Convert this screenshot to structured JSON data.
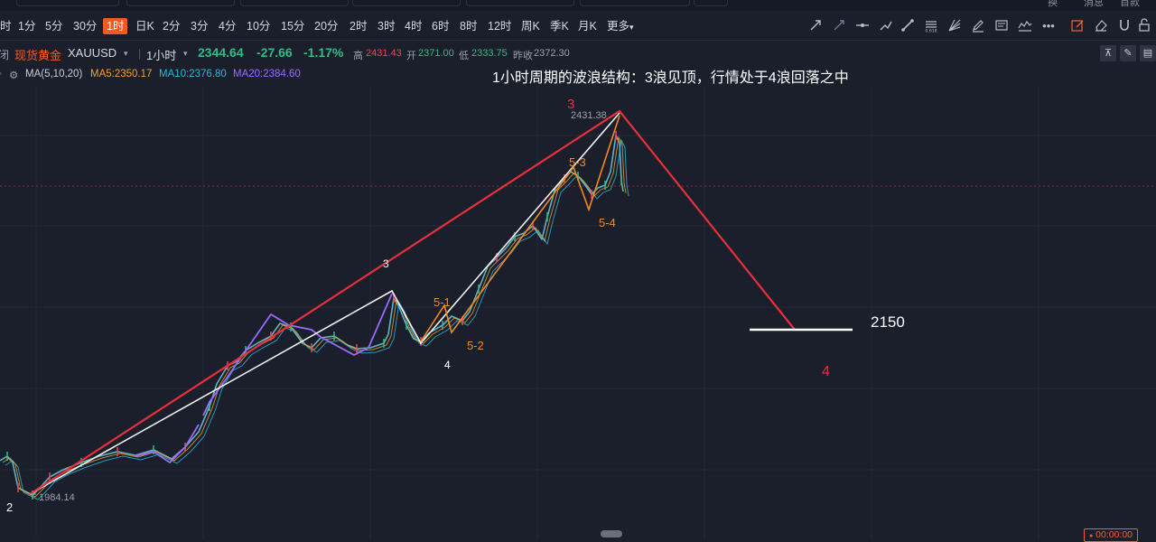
{
  "toolbar": {
    "timeframes": [
      "时",
      "1分",
      "5分",
      "30分",
      "1时",
      "日K",
      "2分",
      "3分",
      "4分",
      "10分",
      "15分",
      "20分",
      "2时",
      "3时",
      "4时",
      "6时",
      "8时",
      "12时",
      "周K",
      "季K",
      "月K",
      "更多"
    ],
    "active_timeframe": "1时",
    "more_arrow": "▾",
    "top_hints": [
      "换",
      "消息",
      "首款"
    ]
  },
  "symbol": {
    "name": "现货黄金",
    "code": "XAUUSD",
    "dropdown_arrow": "▾",
    "period": "1小时",
    "price": "2344.64",
    "change": "-27.66",
    "change_pct": "-1.17%",
    "high_label": "高",
    "high": "2431.43",
    "open_label": "开",
    "open": "2371.00",
    "low_label": "低",
    "low": "2333.75",
    "prev_label": "昨收",
    "prev": "2372.30",
    "left_tag": "闭"
  },
  "ma": {
    "label": "MA(5,10,20)",
    "ma5": "MA5:2350.17",
    "ma10": "MA10:2376.80",
    "ma20": "MA20:2384.60"
  },
  "colors": {
    "up": "#2ebd85",
    "down": "#f0464a",
    "ma5": "#f0a030",
    "ma10": "#2ab7d8",
    "ma20": "#9a6bff",
    "accent": "#f15a24"
  },
  "chart_data": {
    "type": "line",
    "title": "1小时周期的波浪结构：3浪见顶，行情处于4浪回落之中",
    "xlabel": "",
    "ylabel": "",
    "low_marker": "1984.14",
    "high_marker": "2431.38",
    "target_level": "2150",
    "wave_labels": [
      {
        "text": "2",
        "color": "white"
      },
      {
        "text": "3",
        "color": "white"
      },
      {
        "text": "4",
        "color": "white"
      },
      {
        "text": "5-1",
        "color": "orange"
      },
      {
        "text": "5-2",
        "color": "orange"
      },
      {
        "text": "5-3",
        "color": "orange"
      },
      {
        "text": "5-4",
        "color": "orange"
      },
      {
        "text": "3",
        "color": "red"
      },
      {
        "text": "4",
        "color": "red"
      }
    ],
    "series": [
      {
        "values": [
          1984.14,
          2431.38,
          2150
        ]
      }
    ]
  },
  "footer": {
    "time": "00:00:00",
    "clock_icon": "●"
  }
}
